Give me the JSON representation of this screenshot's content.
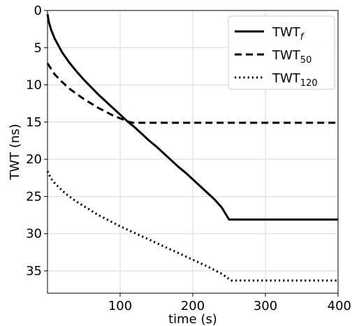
{
  "chart_data": {
    "type": "line",
    "title": "",
    "xlabel": "time (s)",
    "ylabel": "TWT (ns)",
    "xlim": [
      0,
      400
    ],
    "ylim": [
      38,
      0
    ],
    "y_inverted": true,
    "grid": true,
    "x_ticks": [
      {
        "value": 100,
        "label": "100"
      },
      {
        "value": 200,
        "label": "200"
      },
      {
        "value": 300,
        "label": "300"
      },
      {
        "value": 400,
        "label": "400"
      }
    ],
    "y_ticks": [
      {
        "value": 0,
        "label": "0"
      },
      {
        "value": 5,
        "label": "5"
      },
      {
        "value": 10,
        "label": "10"
      },
      {
        "value": 15,
        "label": "15"
      },
      {
        "value": 20,
        "label": "20"
      },
      {
        "value": 25,
        "label": "25"
      },
      {
        "value": 30,
        "label": "30"
      },
      {
        "value": 35,
        "label": "35"
      }
    ],
    "legend_position": "top-right",
    "series": [
      {
        "name": "TWT_f",
        "legend_main": "TWT",
        "legend_sub": "f",
        "sub_italic": true,
        "style": "solid",
        "color": "#000000",
        "x": [
          0,
          2,
          5,
          10,
          20,
          30,
          40,
          50,
          60,
          70,
          80,
          90,
          100,
          110,
          120,
          130,
          140,
          150,
          160,
          170,
          180,
          190,
          200,
          210,
          220,
          230,
          240,
          245,
          250,
          300,
          350,
          400
        ],
        "y": [
          0.5,
          1.6,
          2.6,
          3.8,
          5.6,
          7.0,
          8.2,
          9.3,
          10.3,
          11.3,
          12.2,
          13.1,
          14.0,
          14.9,
          15.7,
          16.6,
          17.5,
          18.3,
          19.2,
          20.1,
          21.0,
          21.8,
          22.7,
          23.6,
          24.5,
          25.4,
          26.5,
          27.3,
          28.1,
          28.1,
          28.1,
          28.1
        ]
      },
      {
        "name": "TWT_50",
        "legend_main": "TWT",
        "legend_sub": "50",
        "sub_italic": false,
        "style": "dashed",
        "color": "#000000",
        "x": [
          0,
          10,
          20,
          30,
          40,
          50,
          60,
          70,
          80,
          90,
          100,
          110,
          118,
          150,
          200,
          250,
          300,
          350,
          400
        ],
        "y": [
          7.1,
          8.6,
          9.6,
          10.5,
          11.2,
          11.9,
          12.5,
          13.1,
          13.6,
          14.1,
          14.5,
          14.9,
          15.1,
          15.1,
          15.1,
          15.1,
          15.1,
          15.1,
          15.1
        ]
      },
      {
        "name": "TWT_120",
        "legend_main": "TWT",
        "legend_sub": "120",
        "sub_italic": false,
        "style": "dotted",
        "color": "#000000",
        "x": [
          0,
          5,
          10,
          20,
          30,
          40,
          50,
          60,
          70,
          80,
          90,
          100,
          120,
          140,
          160,
          180,
          200,
          220,
          240,
          253,
          300,
          350,
          400
        ],
        "y": [
          21.6,
          22.6,
          23.2,
          24.2,
          25.0,
          25.7,
          26.3,
          26.9,
          27.5,
          28.0,
          28.5,
          29.0,
          29.9,
          30.8,
          31.7,
          32.6,
          33.5,
          34.4,
          35.4,
          36.3,
          36.3,
          36.3,
          36.3
        ]
      }
    ]
  }
}
